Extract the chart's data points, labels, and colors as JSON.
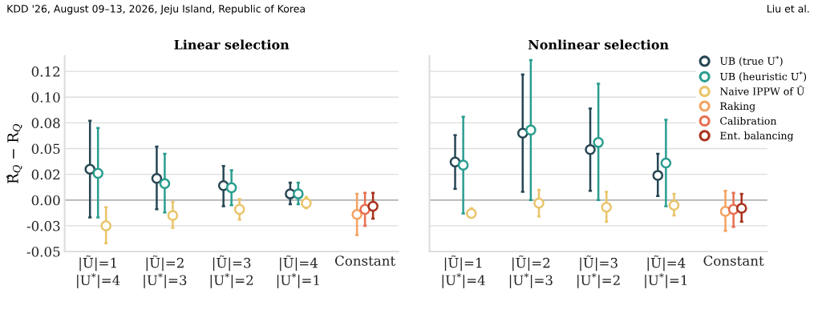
{
  "chart_data": [
    {
      "type": "scatter",
      "title": "Linear selection",
      "ylabel": "R̂$_{Q}$ − R$_{Q}$",
      "annotations": [
        "KDD '26, August 09–13, 2026, Jeju Island, Republic of Korea",
        "Liu et al."
      ],
      "categories": [
        "|Ũ|=1\n|U$^{*}$|=4",
        "|Ũ|=2\n|U$^{*}$|=3",
        "|Ũ|=3\n|U$^{*}$|=2",
        "|Ũ|=4\n|U$^{*}$|=1",
        "Constant"
      ],
      "series": [
        {
          "color": "#264653",
          "values": [
            0.03,
            0.021,
            0.014,
            0.006,
            null
          ],
          "errors": [
            [
              -0.017,
              0.077
            ],
            [
              -0.009,
              0.052
            ],
            [
              -0.006,
              0.033
            ],
            [
              -0.004,
              0.017
            ],
            null
          ]
        },
        {
          "color": "#2a9d8f",
          "values": [
            0.026,
            0.016,
            0.012,
            0.006,
            null
          ],
          "errors": [
            [
              -0.017,
              0.07
            ],
            [
              -0.012,
              0.045
            ],
            [
              -0.005,
              0.029
            ],
            [
              -0.004,
              0.017
            ],
            null
          ]
        },
        {
          "color": "#e9c46a",
          "values": [
            -0.025,
            -0.015,
            -0.009,
            -0.003,
            null
          ],
          "errors": [
            [
              -0.042,
              -0.007
            ],
            [
              -0.027,
              -0.002
            ],
            [
              -0.019,
              0.001
            ],
            [
              -0.008,
              0.003
            ],
            null
          ]
        },
        {
          "color": "#f4a261",
          "values": [
            null,
            null,
            null,
            null,
            -0.014
          ],
          "errors": [
            null,
            null,
            null,
            null,
            [
              -0.034,
              0.006
            ]
          ]
        },
        {
          "color": "#e76f51",
          "values": [
            null,
            null,
            null,
            null,
            -0.009
          ],
          "errors": [
            null,
            null,
            null,
            null,
            [
              -0.025,
              0.007
            ]
          ]
        },
        {
          "color": "#a8321c",
          "values": [
            null,
            null,
            null,
            null,
            -0.006
          ],
          "errors": [
            null,
            null,
            null,
            null,
            [
              -0.018,
              0.007
            ]
          ]
        }
      ],
      "ylim": [
        -0.05,
        0.14
      ],
      "yticks": [
        {
          "value": -0.05,
          "label": "-0.05"
        },
        {
          "value": -0.025,
          "label": "-0.03"
        },
        {
          "value": 0,
          "label": "0.00"
        },
        {
          "value": 0.025,
          "label": "0.02"
        },
        {
          "value": 0.05,
          "label": "0.05"
        },
        {
          "value": 0.075,
          "label": "0.08"
        },
        {
          "value": 0.1,
          "label": "0.10"
        },
        {
          "value": 0.125,
          "label": "0.12"
        }
      ],
      "ref_lines": [
        {
          "axis": "y",
          "value": 0,
          "color": "#aaaaaa"
        }
      ],
      "grid": "y",
      "marker": "circle"
    },
    {
      "type": "scatter",
      "title": "Nonlinear selection",
      "categories": [
        "|Ũ|=1\n|U$^{*}$|=4",
        "|Ũ|=2\n|U$^{*}$|=3",
        "|Ũ|=3\n|U$^{*}$|=2",
        "|Ũ|=4\n|U$^{*}$|=1",
        "Constant"
      ],
      "series": [
        {
          "name": "UB (true U$^{*}$)",
          "color": "#264653",
          "values": [
            0.037,
            0.065,
            0.049,
            0.024,
            null
          ],
          "errors": [
            [
              0.011,
              0.063
            ],
            [
              0.008,
              0.122
            ],
            [
              0.009,
              0.089
            ],
            [
              0.004,
              0.045
            ],
            null
          ]
        },
        {
          "name": "UB (heuristic U$^{*}$)",
          "color": "#2a9d8f",
          "values": [
            0.034,
            0.068,
            0.056,
            0.036,
            null
          ],
          "errors": [
            [
              -0.013,
              0.081
            ],
            [
              0.0,
              0.136
            ],
            [
              0.0,
              0.113
            ],
            [
              -0.006,
              0.078
            ],
            null
          ]
        },
        {
          "name": "Naive IPPW of Ũ",
          "color": "#e9c46a",
          "values": [
            -0.013,
            -0.003,
            -0.007,
            -0.005,
            null
          ],
          "errors": [
            [
              -0.017,
              -0.008
            ],
            [
              -0.016,
              0.01
            ],
            [
              -0.021,
              0.008
            ],
            [
              -0.015,
              0.006
            ],
            null
          ]
        },
        {
          "name": "Raking",
          "color": "#f4a261",
          "values": [
            null,
            null,
            null,
            null,
            -0.011
          ],
          "errors": [
            null,
            null,
            null,
            null,
            [
              -0.03,
              0.009
            ]
          ]
        },
        {
          "name": "Calibration",
          "color": "#e76f51",
          "values": [
            null,
            null,
            null,
            null,
            -0.009
          ],
          "errors": [
            null,
            null,
            null,
            null,
            [
              -0.026,
              0.007
            ]
          ]
        },
        {
          "name": "Ent. balancing",
          "color": "#a8321c",
          "values": [
            null,
            null,
            null,
            null,
            -0.008
          ],
          "errors": [
            null,
            null,
            null,
            null,
            [
              -0.021,
              0.006
            ]
          ]
        }
      ],
      "ylim": [
        -0.05,
        0.14
      ],
      "yticks": [
        -0.05,
        -0.025,
        0,
        0.025,
        0.05,
        0.075,
        0.1,
        0.125
      ],
      "ref_lines": [
        {
          "axis": "y",
          "value": 0,
          "color": "#aaaaaa"
        }
      ],
      "grid": "y",
      "marker": "circle",
      "legend": "top right",
      "tick_labels": "x"
    }
  ]
}
